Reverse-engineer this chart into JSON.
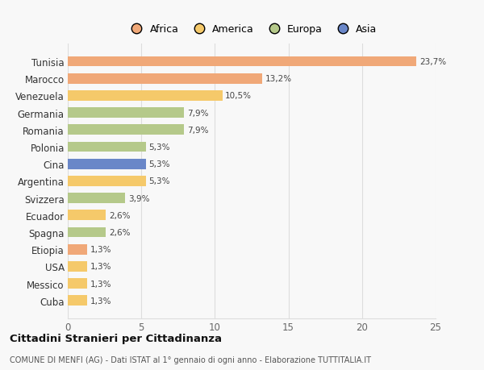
{
  "countries": [
    "Tunisia",
    "Marocco",
    "Venezuela",
    "Germania",
    "Romania",
    "Polonia",
    "Cina",
    "Argentina",
    "Svizzera",
    "Ecuador",
    "Spagna",
    "Etiopia",
    "USA",
    "Messico",
    "Cuba"
  ],
  "values": [
    23.7,
    13.2,
    10.5,
    7.9,
    7.9,
    5.3,
    5.3,
    5.3,
    3.9,
    2.6,
    2.6,
    1.3,
    1.3,
    1.3,
    1.3
  ],
  "labels": [
    "23,7%",
    "13,2%",
    "10,5%",
    "7,9%",
    "7,9%",
    "5,3%",
    "5,3%",
    "5,3%",
    "3,9%",
    "2,6%",
    "2,6%",
    "1,3%",
    "1,3%",
    "1,3%",
    "1,3%"
  ],
  "colors": [
    "#F0A878",
    "#F0A878",
    "#F5C96A",
    "#B5C98A",
    "#B5C98A",
    "#B5C98A",
    "#6A87C8",
    "#F5C96A",
    "#B5C98A",
    "#F5C96A",
    "#B5C98A",
    "#F0A878",
    "#F5C96A",
    "#F5C96A",
    "#F5C96A"
  ],
  "legend_labels": [
    "Africa",
    "America",
    "Europa",
    "Asia"
  ],
  "legend_colors": [
    "#F0A878",
    "#F5C96A",
    "#B5C98A",
    "#6A87C8"
  ],
  "title": "Cittadini Stranieri per Cittadinanza",
  "subtitle": "COMUNE DI MENFI (AG) - Dati ISTAT al 1° gennaio di ogni anno - Elaborazione TUTTITALIA.IT",
  "xlim": [
    0,
    25
  ],
  "xticks": [
    0,
    5,
    10,
    15,
    20,
    25
  ],
  "background_color": "#f8f8f8",
  "bar_height": 0.6
}
